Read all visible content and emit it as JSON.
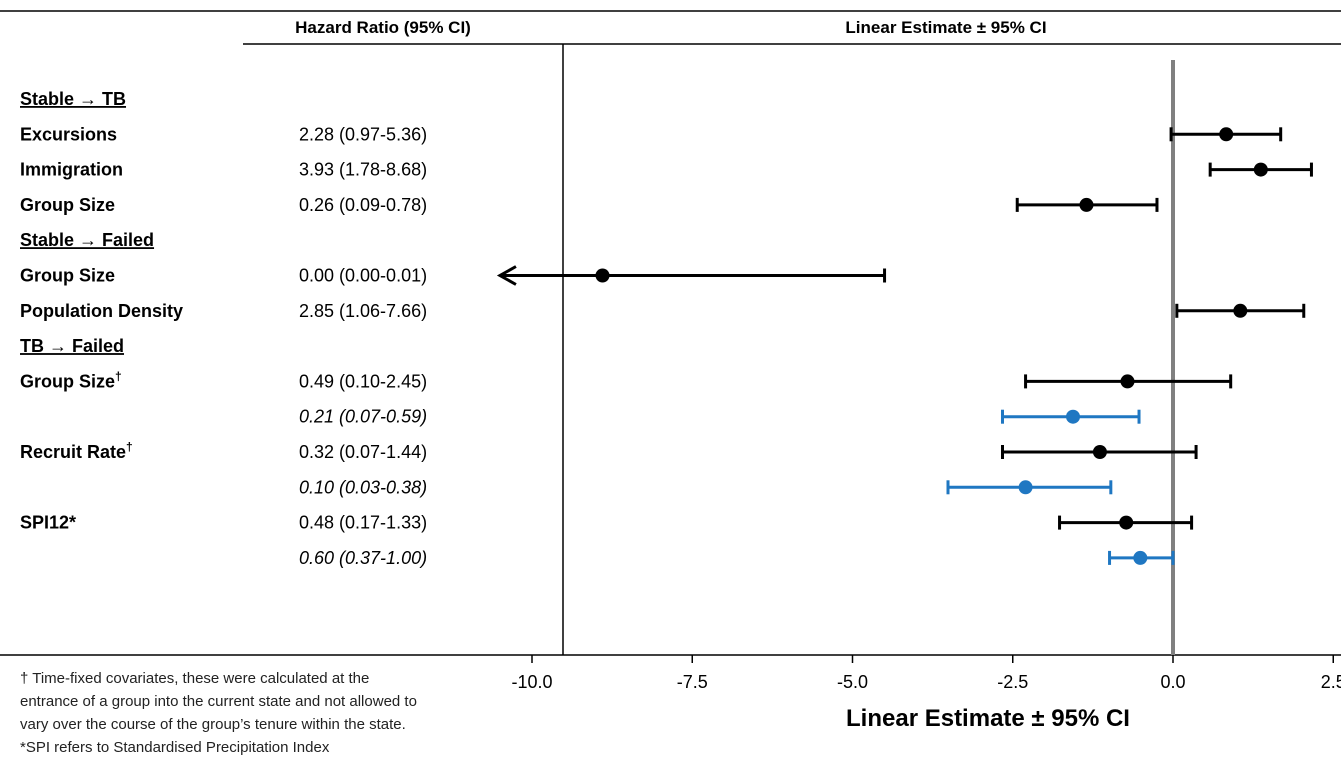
{
  "header": {
    "col_hr": "Hazard Ratio (95% CI)",
    "col_est": "Linear Estimate ± 95% CI"
  },
  "rows": [
    {
      "kind": "section",
      "label": "Stable → TB"
    },
    {
      "kind": "item",
      "label": "Excursions",
      "sup": "",
      "hr": "2.28 (0.97-5.36)",
      "italic": false
    },
    {
      "kind": "item",
      "label": "Immigration",
      "sup": "",
      "hr": "3.93 (1.78-8.68)",
      "italic": false
    },
    {
      "kind": "item",
      "label": "Group Size",
      "sup": "",
      "hr": "0.26 (0.09-0.78)",
      "italic": false
    },
    {
      "kind": "section",
      "label": "Stable → Failed"
    },
    {
      "kind": "item",
      "label": "Group Size",
      "sup": "",
      "hr": "0.00 (0.00-0.01)",
      "italic": false
    },
    {
      "kind": "item",
      "label": "Population Density",
      "sup": "",
      "hr": "2.85 (1.06-7.66)",
      "italic": false
    },
    {
      "kind": "section",
      "label": "TB → Failed"
    },
    {
      "kind": "item",
      "label": "Group Size",
      "sup": "†",
      "hr": "0.49 (0.10-2.45)",
      "italic": false
    },
    {
      "kind": "item",
      "label": "",
      "sup": "",
      "hr": "0.21 (0.07-0.59)",
      "italic": true
    },
    {
      "kind": "item",
      "label": "Recruit Rate",
      "sup": "†",
      "hr": "0.32 (0.07-1.44)",
      "italic": false
    },
    {
      "kind": "item",
      "label": "",
      "sup": "",
      "hr": "0.10 (0.03-0.38)",
      "italic": true
    },
    {
      "kind": "item",
      "label": "SPI12*",
      "sup": "",
      "hr": "0.48 (0.17-1.33)",
      "italic": false
    },
    {
      "kind": "item",
      "label": "",
      "sup": "",
      "hr": "0.60 (0.37-1.00)",
      "italic": true
    }
  ],
  "footnotes": [
    "† Time-fixed covariates, these were calculated at the",
    "entrance of a group into the current state and not allowed to",
    "vary over the course of the group’s tenure within the state.",
    "*SPI refers to Standardised Precipitation Index"
  ],
  "chart_data": {
    "type": "forest",
    "title": "",
    "xlabel": "Linear Estimate ± 95% CI",
    "ylabel": "",
    "xlim": [
      -10.8,
      2.7
    ],
    "xticks": [
      -10.0,
      -7.5,
      -5.0,
      -2.5,
      0.0,
      2.5
    ],
    "xtick_labels": [
      "-10.0",
      "-7.5",
      "-5.0",
      "-2.5",
      "0.0",
      "2.5"
    ],
    "reference_line": 0.0,
    "grid": false,
    "colors": {
      "time_varying": "#000000",
      "time_fixed": "#1f77c2",
      "reference": "#808080"
    },
    "points": [
      {
        "row": 1,
        "estimate": 0.83,
        "lower": -0.03,
        "upper": 1.68,
        "color": "time_varying",
        "arrow_left": false
      },
      {
        "row": 2,
        "estimate": 1.37,
        "lower": 0.58,
        "upper": 2.16,
        "color": "time_varying",
        "arrow_left": false
      },
      {
        "row": 3,
        "estimate": -1.35,
        "lower": -2.43,
        "upper": -0.25,
        "color": "time_varying",
        "arrow_left": false
      },
      {
        "row": 5,
        "estimate": -8.9,
        "lower": -10.5,
        "upper": -4.5,
        "color": "time_varying",
        "arrow_left": true
      },
      {
        "row": 6,
        "estimate": 1.05,
        "lower": 0.06,
        "upper": 2.04,
        "color": "time_varying",
        "arrow_left": false
      },
      {
        "row": 8,
        "estimate": -0.71,
        "lower": -2.3,
        "upper": 0.9,
        "color": "time_varying",
        "arrow_left": false
      },
      {
        "row": 9,
        "estimate": -1.56,
        "lower": -2.66,
        "upper": -0.53,
        "color": "time_fixed",
        "arrow_left": false
      },
      {
        "row": 10,
        "estimate": -1.14,
        "lower": -2.66,
        "upper": 0.36,
        "color": "time_varying",
        "arrow_left": false
      },
      {
        "row": 11,
        "estimate": -2.3,
        "lower": -3.51,
        "upper": -0.97,
        "color": "time_fixed",
        "arrow_left": false
      },
      {
        "row": 12,
        "estimate": -0.73,
        "lower": -1.77,
        "upper": 0.29,
        "color": "time_varying",
        "arrow_left": false
      },
      {
        "row": 13,
        "estimate": -0.51,
        "lower": -0.99,
        "upper": 0.0,
        "color": "time_fixed",
        "arrow_left": false
      }
    ]
  }
}
